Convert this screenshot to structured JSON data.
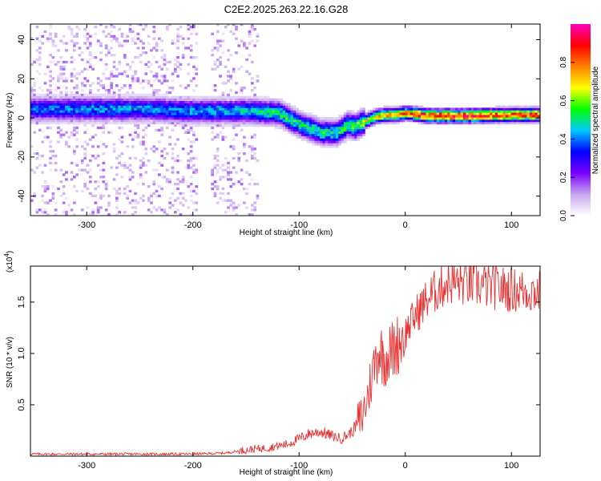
{
  "title": "C2E2.2025.263.22.16.G28",
  "chart_data": [
    {
      "type": "heatmap",
      "title": "C2E2.2025.263.22.16.G28",
      "xlabel": "Height of straight line (km)",
      "ylabel": "Frequency (Hz)",
      "xlim": [
        -353,
        127
      ],
      "ylim": [
        -50,
        48
      ],
      "xticks": [
        -300,
        -200,
        -100,
        0,
        100
      ],
      "yticks": [
        -40,
        -20,
        0,
        20,
        40
      ],
      "colorbar": {
        "label": "Normalized spectral amplitude",
        "range": [
          0,
          1
        ],
        "ticks": [
          "0.0",
          "0.2",
          "0.4",
          "0.6",
          "0.8"
        ],
        "colors": [
          "#ffffff",
          "#c8a8f0",
          "#7a00ff",
          "#0000ff",
          "#00c8ff",
          "#00ff00",
          "#ffff00",
          "#ff8000",
          "#ff0000",
          "#ff00c0"
        ]
      },
      "trend": {
        "description": "dominant frequency track",
        "x": [
          -353,
          -300,
          -250,
          -200,
          -150,
          -120,
          -100,
          -80,
          -65,
          -55,
          -48,
          -42,
          -30,
          -20,
          -10,
          0,
          20,
          60,
          100,
          127
        ],
        "freq": [
          4,
          4,
          4,
          3,
          3,
          2,
          -4,
          -8,
          -8,
          -4,
          -5,
          -3,
          0,
          1,
          1,
          2,
          0.5,
          0.5,
          1,
          1
        ],
        "amplitude": [
          0.4,
          0.45,
          0.45,
          0.45,
          0.5,
          0.55,
          0.55,
          0.55,
          0.55,
          0.6,
          0.6,
          0.65,
          0.75,
          0.8,
          0.8,
          0.85,
          0.95,
          0.95,
          0.9,
          0.9
        ]
      }
    },
    {
      "type": "line",
      "xlabel": "Height of straight line (km)",
      "ylabel": "SNR (10 * v/v)",
      "multiplier": "(x10",
      "multiplier_exp": "4",
      "multiplier_close": ")",
      "xlim": [
        -353,
        127
      ],
      "ylim": [
        0,
        1.85
      ],
      "xticks": [
        -300,
        -200,
        -100,
        0,
        100
      ],
      "yticks": [
        "0.5",
        "1.0",
        "1.5"
      ],
      "ytick_values": [
        0.5,
        1.0,
        1.5
      ],
      "series": [
        {
          "name": "SNR",
          "color": "#e83030",
          "x": [
            -353,
            -300,
            -250,
            -200,
            -170,
            -150,
            -130,
            -110,
            -100,
            -90,
            -80,
            -70,
            -60,
            -50,
            -40,
            -35,
            -30,
            -25,
            -20,
            -10,
            0,
            10,
            20,
            30,
            40,
            60,
            80,
            100,
            127
          ],
          "y": [
            0.02,
            0.02,
            0.02,
            0.02,
            0.03,
            0.06,
            0.08,
            0.12,
            0.17,
            0.22,
            0.24,
            0.2,
            0.17,
            0.24,
            0.4,
            0.6,
            0.85,
            1.05,
            0.95,
            1.05,
            1.2,
            1.38,
            1.52,
            1.62,
            1.7,
            1.68,
            1.65,
            1.62,
            1.6
          ]
        }
      ]
    }
  ]
}
